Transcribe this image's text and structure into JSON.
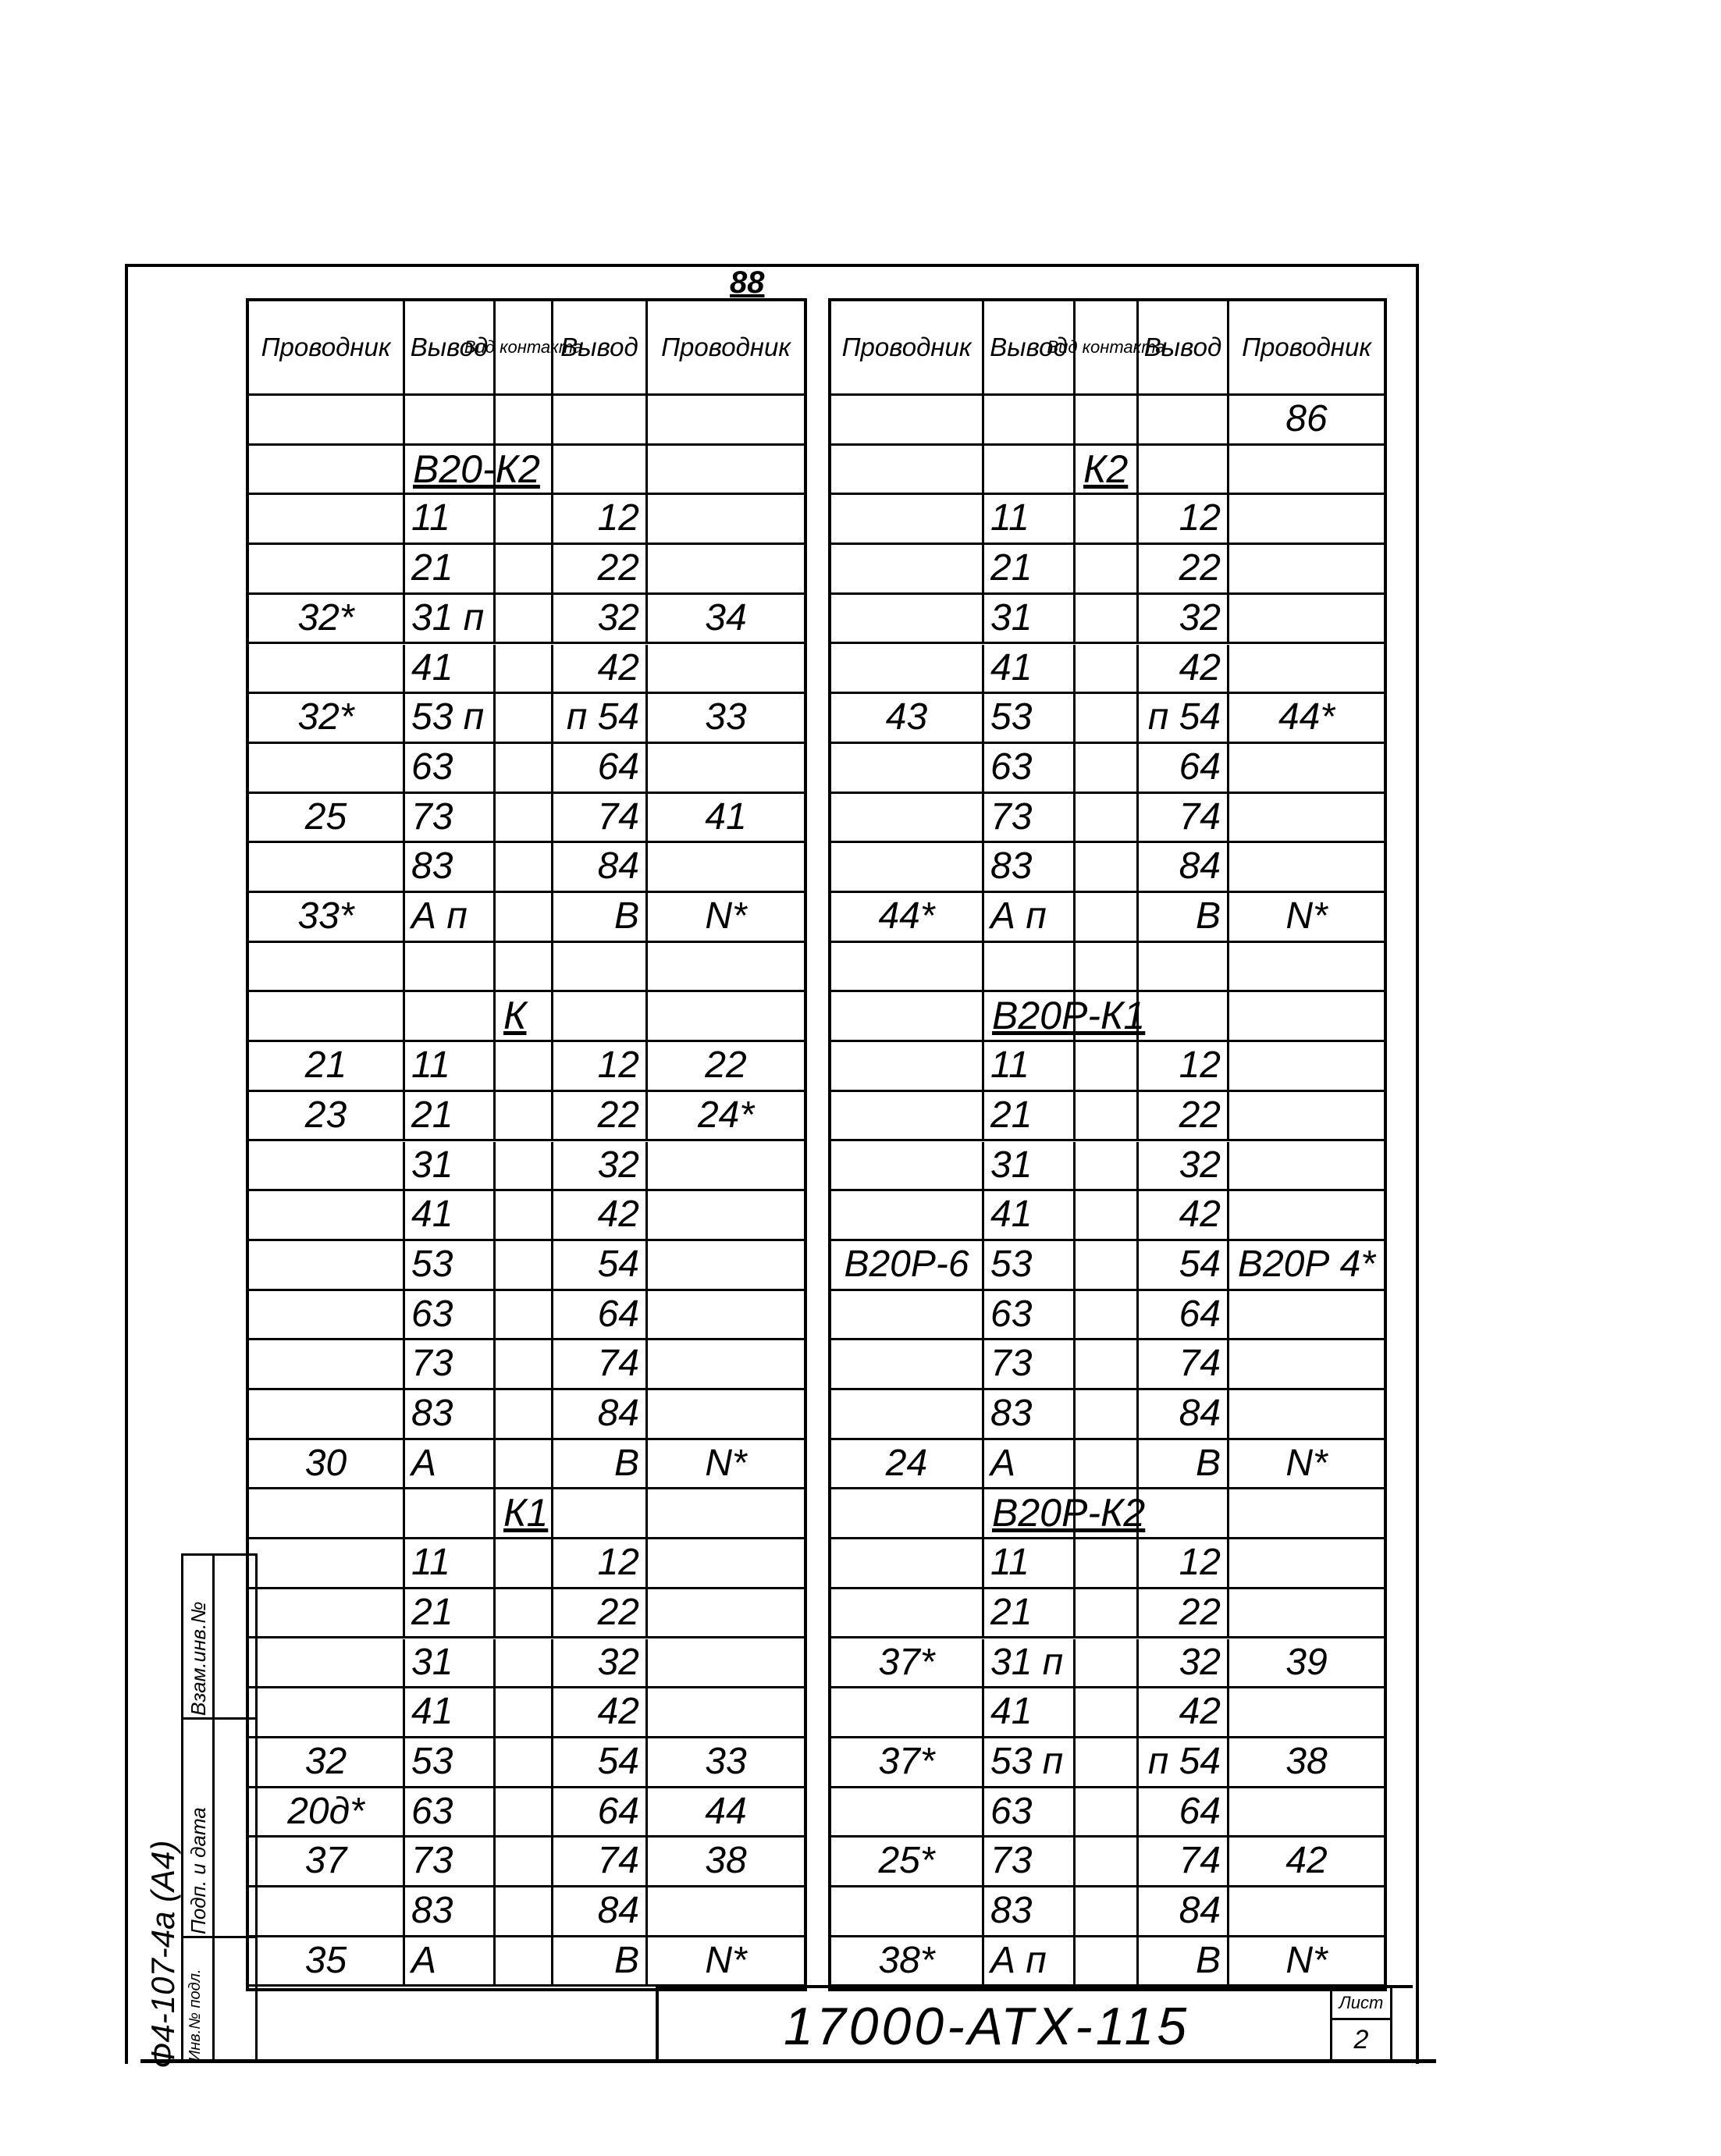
{
  "sheet_number_top": "88",
  "headers": [
    "Проводник",
    "Вывод",
    "Вид контакта",
    "Вывод",
    "Проводник"
  ],
  "left_table": {
    "rows": [
      [
        "",
        "",
        "",
        "",
        ""
      ],
      {
        "label": "В20-К2",
        "col": 1
      },
      [
        "",
        "11",
        "",
        "12",
        ""
      ],
      [
        "",
        "21",
        "",
        "22",
        ""
      ],
      [
        "32*",
        "31 п",
        "",
        "32",
        "34"
      ],
      [
        "",
        "41",
        "",
        "42",
        ""
      ],
      [
        "32*",
        "53 п",
        "",
        "п 54",
        "33"
      ],
      [
        "",
        "63",
        "",
        "64",
        ""
      ],
      [
        "25",
        "73",
        "",
        "74",
        "41"
      ],
      [
        "",
        "83",
        "",
        "84",
        ""
      ],
      [
        "33*",
        "А п",
        "",
        "В",
        "N*"
      ],
      [
        "",
        "",
        "",
        "",
        ""
      ],
      {
        "label": "К",
        "col": 2
      },
      [
        "21",
        "11",
        "",
        "12",
        "22"
      ],
      [
        "23",
        "21",
        "",
        "22",
        "24*"
      ],
      [
        "",
        "31",
        "",
        "32",
        ""
      ],
      [
        "",
        "41",
        "",
        "42",
        ""
      ],
      [
        "",
        "53",
        "",
        "54",
        ""
      ],
      [
        "",
        "63",
        "",
        "64",
        ""
      ],
      [
        "",
        "73",
        "",
        "74",
        ""
      ],
      [
        "",
        "83",
        "",
        "84",
        ""
      ],
      [
        "30",
        "А",
        "",
        "В",
        "N*"
      ],
      {
        "label": "К1",
        "col": 2
      },
      [
        "",
        "11",
        "",
        "12",
        ""
      ],
      [
        "",
        "21",
        "",
        "22",
        ""
      ],
      [
        "",
        "31",
        "",
        "32",
        ""
      ],
      [
        "",
        "41",
        "",
        "42",
        ""
      ],
      [
        "32",
        "53",
        "",
        "54",
        "33"
      ],
      [
        "20д*",
        "63",
        "",
        "64",
        "44"
      ],
      [
        "37",
        "73",
        "",
        "74",
        "38"
      ],
      [
        "",
        "83",
        "",
        "84",
        ""
      ],
      [
        "35",
        "А",
        "",
        "В",
        "N*"
      ]
    ]
  },
  "right_table": {
    "rows": [
      [
        "",
        "",
        "",
        "",
        "86"
      ],
      {
        "label": "К2",
        "col": 2
      },
      [
        "",
        "11",
        "",
        "12",
        ""
      ],
      [
        "",
        "21",
        "",
        "22",
        ""
      ],
      [
        "",
        "31",
        "",
        "32",
        ""
      ],
      [
        "",
        "41",
        "",
        "42",
        ""
      ],
      [
        "43",
        "53",
        "",
        "п 54",
        "44*"
      ],
      [
        "",
        "63",
        "",
        "64",
        ""
      ],
      [
        "",
        "73",
        "",
        "74",
        ""
      ],
      [
        "",
        "83",
        "",
        "84",
        ""
      ],
      [
        "44*",
        "А п",
        "",
        "В",
        "N*"
      ],
      [
        "",
        "",
        "",
        "",
        ""
      ],
      {
        "label": "В20Р-К1",
        "col": 1
      },
      [
        "",
        "11",
        "",
        "12",
        ""
      ],
      [
        "",
        "21",
        "",
        "22",
        ""
      ],
      [
        "",
        "31",
        "",
        "32",
        ""
      ],
      [
        "",
        "41",
        "",
        "42",
        ""
      ],
      [
        "В20Р-6",
        "53",
        "",
        "54",
        "В20Р 4*"
      ],
      [
        "",
        "63",
        "",
        "64",
        ""
      ],
      [
        "",
        "73",
        "",
        "74",
        ""
      ],
      [
        "",
        "83",
        "",
        "84",
        ""
      ],
      [
        "24",
        "А",
        "",
        "В",
        "N*"
      ],
      {
        "label": "В20Р-К2",
        "col": 1
      },
      [
        "",
        "11",
        "",
        "12",
        ""
      ],
      [
        "",
        "21",
        "",
        "22",
        ""
      ],
      [
        "37*",
        "31 п",
        "",
        "32",
        "39"
      ],
      [
        "",
        "41",
        "",
        "42",
        ""
      ],
      [
        "37*",
        "53 п",
        "",
        "п 54",
        "38"
      ],
      [
        "",
        "63",
        "",
        "64",
        ""
      ],
      [
        "25*",
        "73",
        "",
        "74",
        "42"
      ],
      [
        "",
        "83",
        "",
        "84",
        ""
      ],
      [
        "38*",
        "А п",
        "",
        "В",
        "N*"
      ]
    ]
  },
  "title_block": {
    "doc_code": "17000-АТХ-115",
    "sheet_label": "Лист",
    "sheet_value": "2"
  },
  "side_stamp": {
    "format": "Ф4-107-4а (А4)",
    "fields": [
      "Взам.инв.№",
      "Подп. и дата",
      "Инв.№ подл."
    ]
  }
}
